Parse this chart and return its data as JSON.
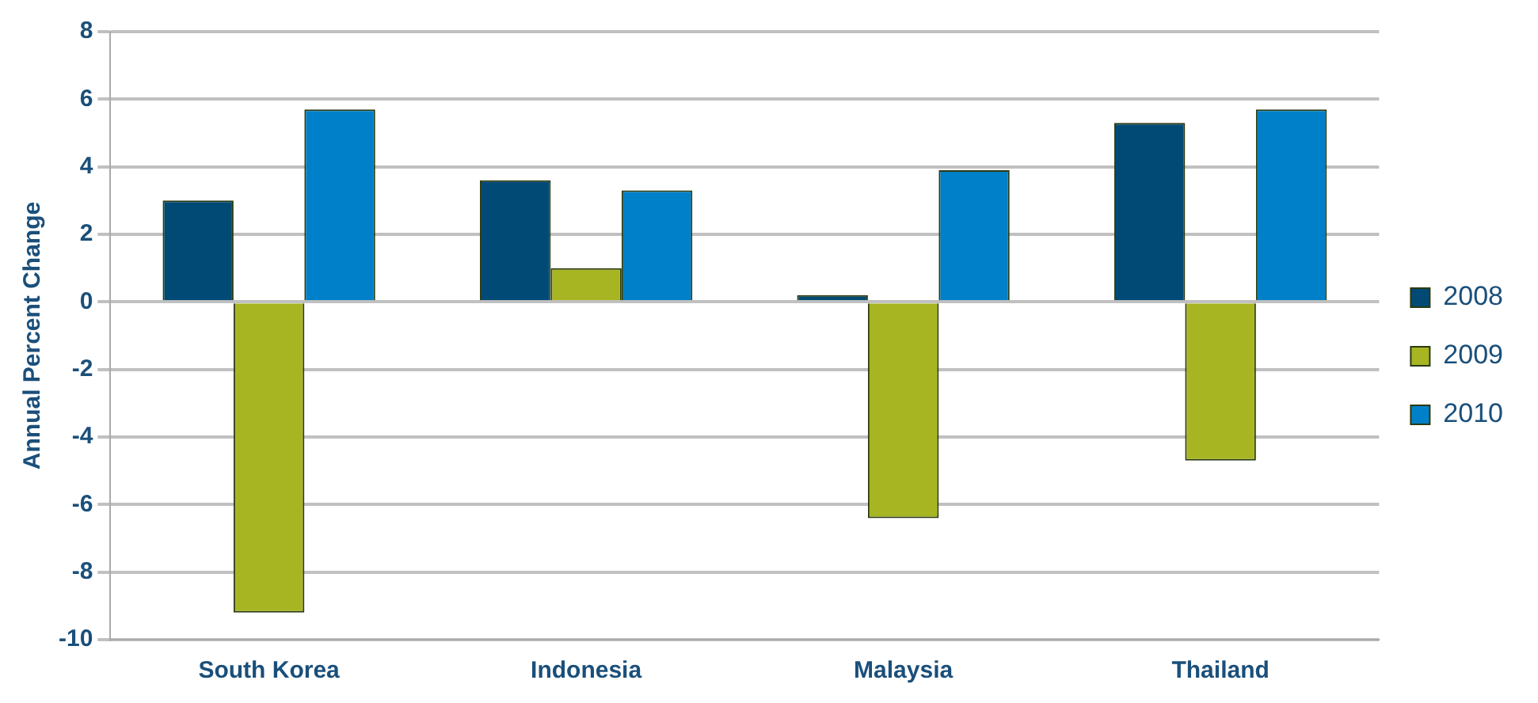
{
  "chart_data": {
    "type": "bar",
    "ylabel": "Annual Percent Change",
    "categories": [
      "South Korea",
      "Indonesia",
      "Malaysia",
      "Thailand"
    ],
    "series": [
      {
        "name": "2008",
        "color": "#004a75",
        "values": [
          3.0,
          3.6,
          0.2,
          5.3
        ]
      },
      {
        "name": "2009",
        "color": "#a8b523",
        "values": [
          -9.2,
          1.0,
          -6.4,
          -4.7
        ]
      },
      {
        "name": "2010",
        "color": "#0080c8",
        "values": [
          5.7,
          3.3,
          3.9,
          5.7
        ]
      }
    ],
    "ylim": [
      -10,
      8
    ],
    "yticks": [
      -10,
      -8,
      -6,
      -4,
      -2,
      0,
      2,
      4,
      6,
      8
    ],
    "grid": "y",
    "legend": "right"
  }
}
